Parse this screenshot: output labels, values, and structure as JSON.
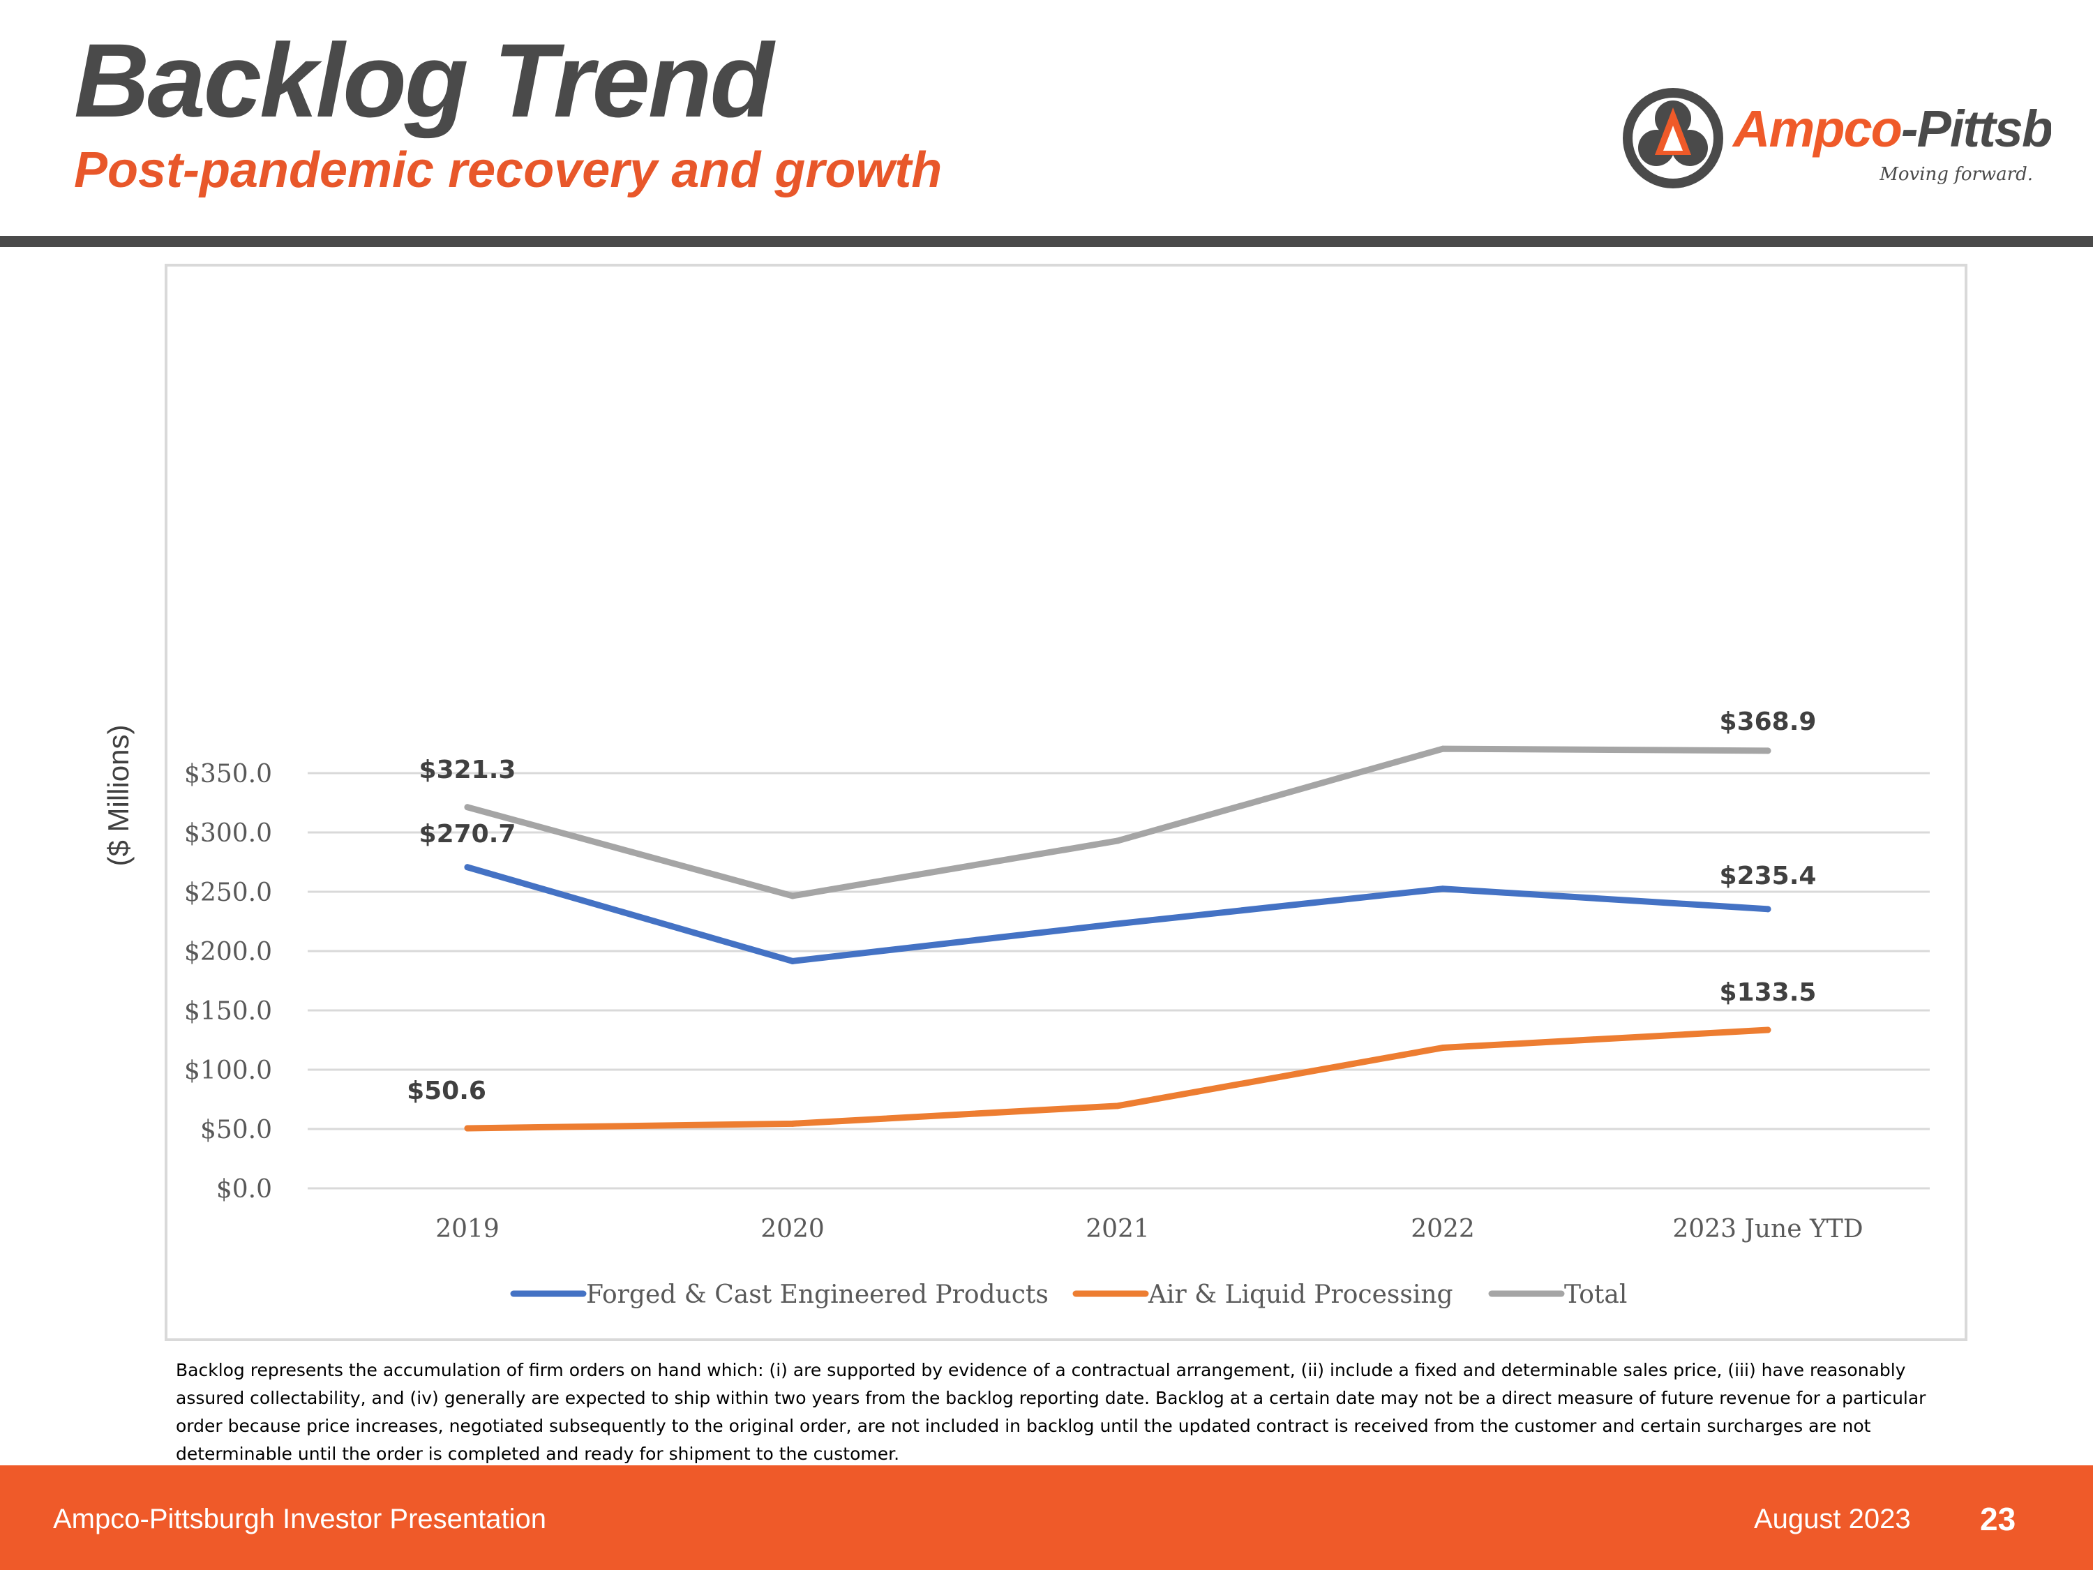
{
  "header": {
    "title": "Backlog Trend",
    "subtitle": "Post-pandemic recovery and growth"
  },
  "logo": {
    "name": "Ampco-Pittsburgh",
    "part1": "Ampco",
    "part2": "-Pittsburgh",
    "tagline": "Moving forward."
  },
  "colors": {
    "accent": "#ef5a29",
    "title_gray": "#4a4a4a",
    "series_forged": "#4472c4",
    "series_air": "#ed7d31",
    "series_total": "#a5a5a5"
  },
  "chart_data": {
    "type": "line",
    "title": "",
    "xlabel": "",
    "ylabel": "($ Millions)",
    "categories": [
      "2019",
      "2020",
      "2021",
      "2022",
      "2023 June YTD"
    ],
    "ylim": [
      0,
      350
    ],
    "yticks": [
      {
        "value": 0,
        "label": "$0.0"
      },
      {
        "value": 50,
        "label": "$50.0"
      },
      {
        "value": 100,
        "label": "$100.0"
      },
      {
        "value": 150,
        "label": "$150.0"
      },
      {
        "value": 200,
        "label": "$200.0"
      },
      {
        "value": 250,
        "label": "$250.0"
      },
      {
        "value": 300,
        "label": "$300.0"
      },
      {
        "value": 350,
        "label": "$350.0"
      }
    ],
    "grid": true,
    "legend_position": "bottom",
    "series": [
      {
        "key": "forged",
        "name": "Forged & Cast Engineered Products",
        "color": "#4472c4",
        "values": [
          270.7,
          191.5,
          223.0,
          252.5,
          235.4
        ],
        "labels": [
          "$270.7",
          "",
          "",
          "",
          "$235.4"
        ]
      },
      {
        "key": "air",
        "name": "Air & Liquid Processing",
        "color": "#ed7d31",
        "values": [
          50.6,
          54.5,
          69.5,
          118.5,
          133.5
        ],
        "labels": [
          "$50.6",
          "",
          "",
          "",
          "$133.5"
        ]
      },
      {
        "key": "total",
        "name": "Total",
        "color": "#a5a5a5",
        "values": [
          321.3,
          246.5,
          293.0,
          370.5,
          368.9
        ],
        "labels": [
          "$321.3",
          "",
          "",
          "",
          "$368.9"
        ]
      }
    ]
  },
  "footnote": "Backlog represents the accumulation of firm orders on hand which: (i) are supported by evidence of a contractual arrangement, (ii) include a fixed and determinable sales price, (iii) have reasonably assured collectability, and (iv) generally are expected to ship within two years from the backlog reporting date. Backlog at a certain date may not be a direct measure of future revenue for a particular order because price increases, negotiated subsequently to the original order, are not included in backlog until the updated contract is received from the customer and certain surcharges are not determinable until the order is completed and ready for shipment to the customer.",
  "footer": {
    "presentation": "Ampco-Pittsburgh Investor Presentation",
    "date": "August 2023",
    "page": "23"
  }
}
